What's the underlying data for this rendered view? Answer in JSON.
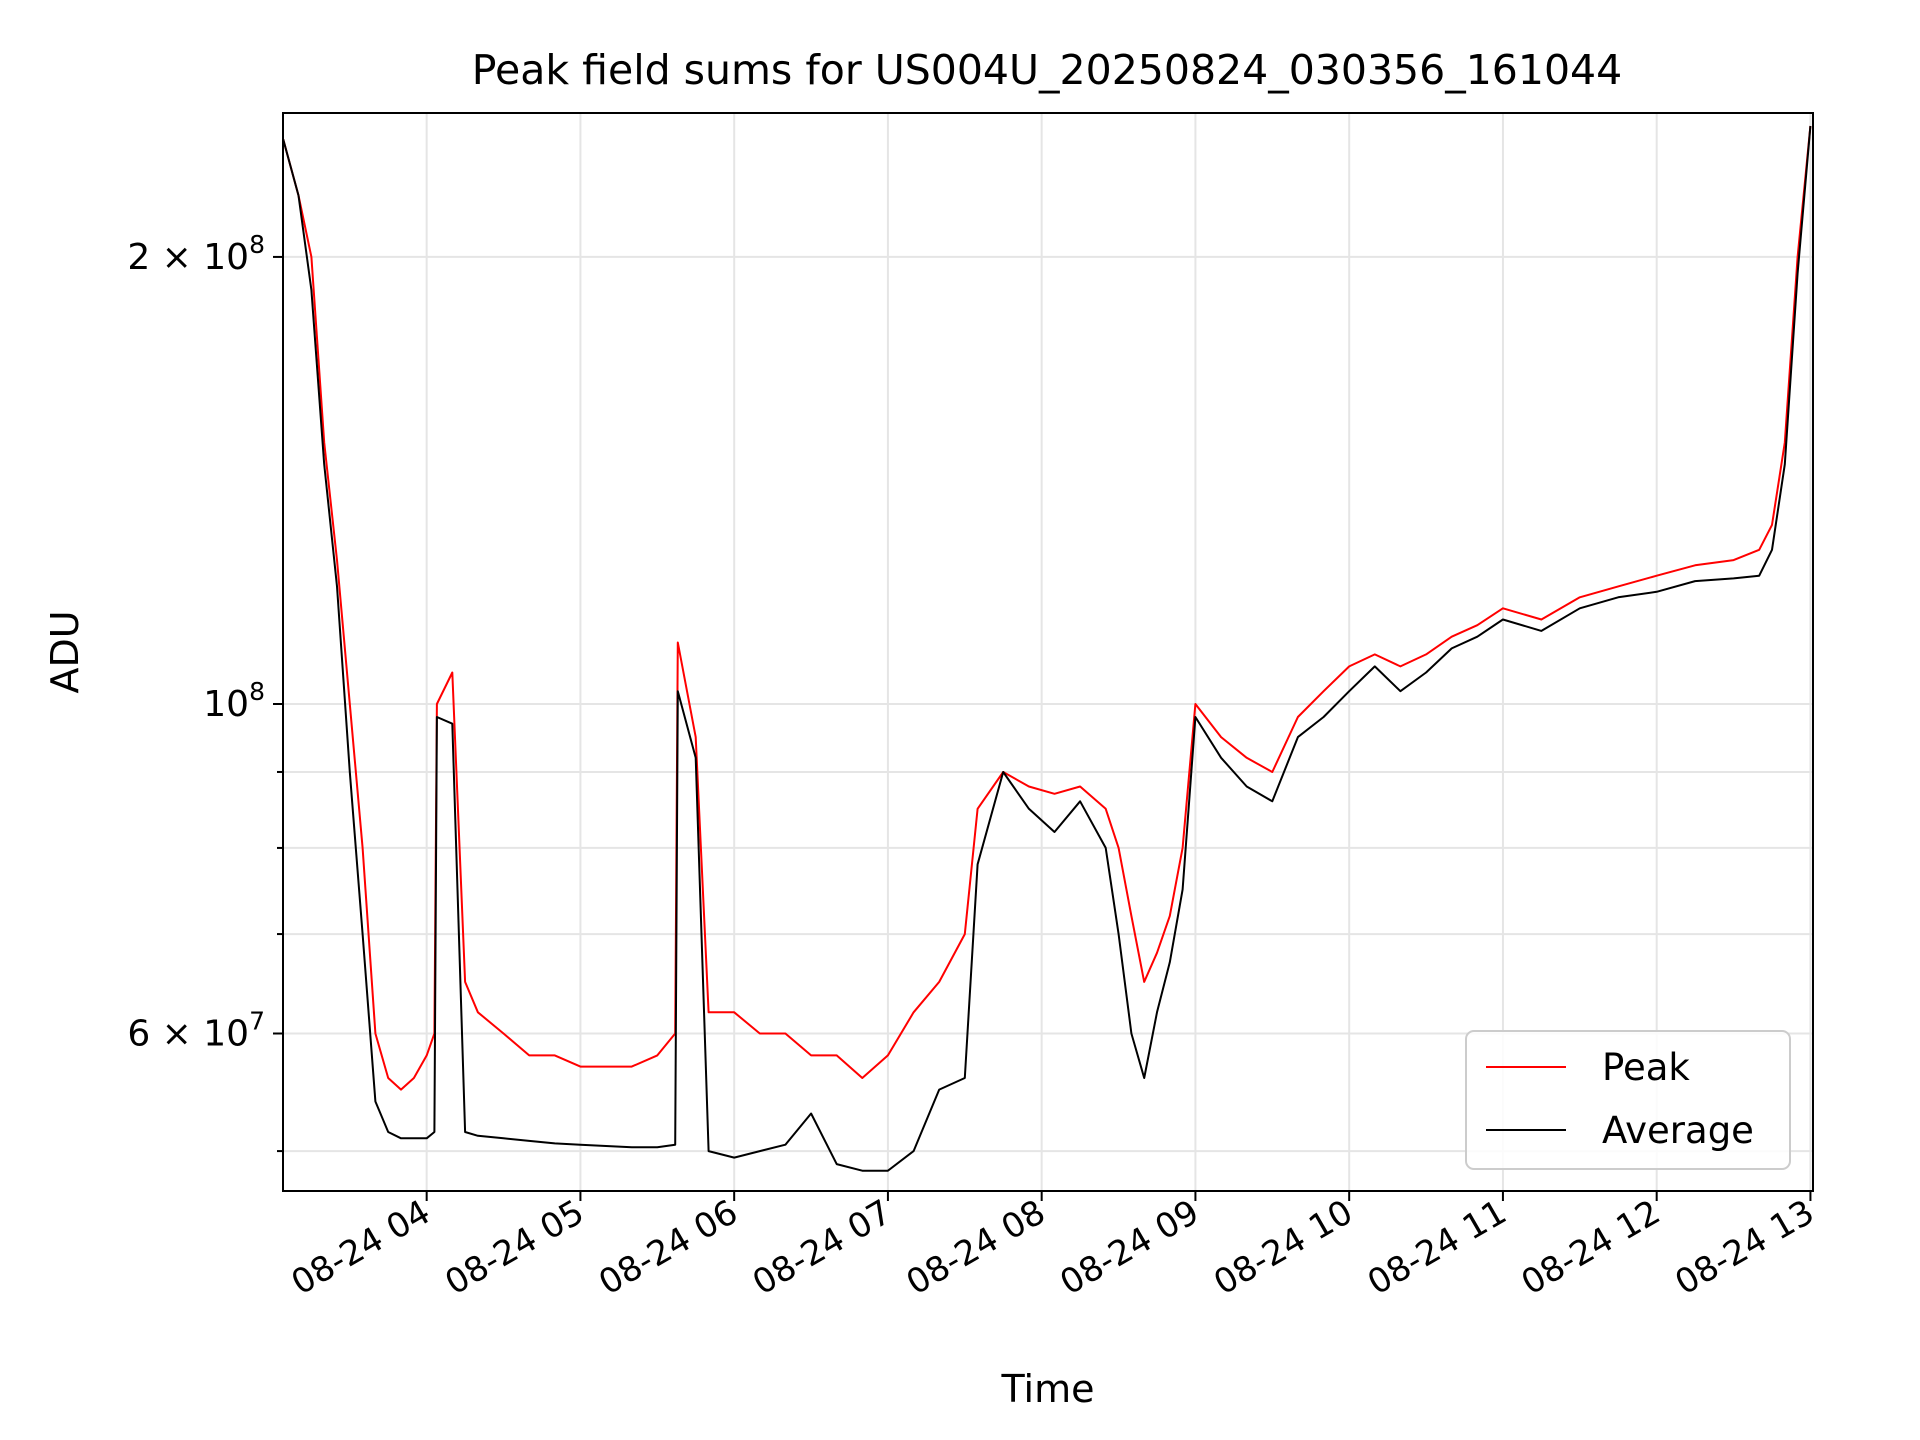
{
  "chart_data": {
    "type": "line",
    "title": "Peak field sums for US004U_20250824_030356_161044",
    "xlabel": "Time",
    "ylabel": "ADU",
    "yscale": "log",
    "grid": true,
    "legend_position": "lower-right",
    "xlim": [
      "2025-08-24T03:03:56",
      "2025-08-24T13:01:00"
    ],
    "ylim": [
      47000000,
      250000000
    ],
    "x_ticks": [
      {
        "value": "2025-08-24T04:00:00",
        "label": "08-24 04"
      },
      {
        "value": "2025-08-24T05:00:00",
        "label": "08-24 05"
      },
      {
        "value": "2025-08-24T06:00:00",
        "label": "08-24 06"
      },
      {
        "value": "2025-08-24T07:00:00",
        "label": "08-24 07"
      },
      {
        "value": "2025-08-24T08:00:00",
        "label": "08-24 08"
      },
      {
        "value": "2025-08-24T09:00:00",
        "label": "08-24 09"
      },
      {
        "value": "2025-08-24T10:00:00",
        "label": "08-24 10"
      },
      {
        "value": "2025-08-24T11:00:00",
        "label": "08-24 11"
      },
      {
        "value": "2025-08-24T12:00:00",
        "label": "08-24 12"
      },
      {
        "value": "2025-08-24T13:00:00",
        "label": "08-24 13"
      }
    ],
    "y_major_ticks": [
      {
        "value": 60000000,
        "mantissa": "6",
        "exponent": "7"
      },
      {
        "value": 100000000,
        "mantissa": "",
        "exponent": "8"
      },
      {
        "value": 200000000,
        "mantissa": "2",
        "exponent": "8"
      }
    ],
    "y_minor_ticks": [
      50000000,
      70000000,
      80000000,
      90000000
    ],
    "series": [
      {
        "name": "Peak",
        "color": "#ff0000",
        "x": [
          "2025-08-24T03:04:00",
          "2025-08-24T03:10:00",
          "2025-08-24T03:15:00",
          "2025-08-24T03:20:00",
          "2025-08-24T03:25:00",
          "2025-08-24T03:30:00",
          "2025-08-24T03:35:00",
          "2025-08-24T03:40:00",
          "2025-08-24T03:45:00",
          "2025-08-24T03:50:00",
          "2025-08-24T03:55:00",
          "2025-08-24T04:00:00",
          "2025-08-24T04:03:00",
          "2025-08-24T04:04:00",
          "2025-08-24T04:10:00",
          "2025-08-24T04:15:00",
          "2025-08-24T04:20:00",
          "2025-08-24T04:30:00",
          "2025-08-24T04:40:00",
          "2025-08-24T04:50:00",
          "2025-08-24T05:00:00",
          "2025-08-24T05:10:00",
          "2025-08-24T05:20:00",
          "2025-08-24T05:30:00",
          "2025-08-24T05:37:00",
          "2025-08-24T05:38:00",
          "2025-08-24T05:45:00",
          "2025-08-24T05:50:00",
          "2025-08-24T06:00:00",
          "2025-08-24T06:10:00",
          "2025-08-24T06:20:00",
          "2025-08-24T06:30:00",
          "2025-08-24T06:40:00",
          "2025-08-24T06:50:00",
          "2025-08-24T07:00:00",
          "2025-08-24T07:10:00",
          "2025-08-24T07:20:00",
          "2025-08-24T07:30:00",
          "2025-08-24T07:35:00",
          "2025-08-24T07:45:00",
          "2025-08-24T07:55:00",
          "2025-08-24T08:05:00",
          "2025-08-24T08:15:00",
          "2025-08-24T08:25:00",
          "2025-08-24T08:30:00",
          "2025-08-24T08:35:00",
          "2025-08-24T08:40:00",
          "2025-08-24T08:45:00",
          "2025-08-24T08:50:00",
          "2025-08-24T08:55:00",
          "2025-08-24T09:00:00",
          "2025-08-24T09:10:00",
          "2025-08-24T09:20:00",
          "2025-08-24T09:30:00",
          "2025-08-24T09:40:00",
          "2025-08-24T09:50:00",
          "2025-08-24T10:00:00",
          "2025-08-24T10:10:00",
          "2025-08-24T10:20:00",
          "2025-08-24T10:30:00",
          "2025-08-24T10:40:00",
          "2025-08-24T10:50:00",
          "2025-08-24T11:00:00",
          "2025-08-24T11:15:00",
          "2025-08-24T11:30:00",
          "2025-08-24T11:45:00",
          "2025-08-24T12:00:00",
          "2025-08-24T12:15:00",
          "2025-08-24T12:30:00",
          "2025-08-24T12:40:00",
          "2025-08-24T12:45:00",
          "2025-08-24T12:50:00",
          "2025-08-24T12:55:00",
          "2025-08-24T13:00:00"
        ],
        "y": [
          240000000,
          220000000,
          200000000,
          150000000,
          125000000,
          100000000,
          80000000,
          60000000,
          56000000,
          55000000,
          56000000,
          58000000,
          60000000,
          100000000,
          105000000,
          65000000,
          62000000,
          60000000,
          58000000,
          58000000,
          57000000,
          57000000,
          57000000,
          58000000,
          60000000,
          110000000,
          95000000,
          62000000,
          62000000,
          60000000,
          60000000,
          58000000,
          58000000,
          56000000,
          58000000,
          62000000,
          65000000,
          70000000,
          85000000,
          90000000,
          88000000,
          87000000,
          88000000,
          85000000,
          80000000,
          72000000,
          65000000,
          68000000,
          72000000,
          80000000,
          100000000,
          95000000,
          92000000,
          90000000,
          98000000,
          102000000,
          106000000,
          108000000,
          106000000,
          108000000,
          111000000,
          113000000,
          116000000,
          114000000,
          118000000,
          120000000,
          122000000,
          124000000,
          125000000,
          127000000,
          132000000,
          150000000,
          200000000,
          245000000
        ]
      },
      {
        "name": "Average",
        "color": "#000000",
        "x": [
          "2025-08-24T03:04:00",
          "2025-08-24T03:10:00",
          "2025-08-24T03:15:00",
          "2025-08-24T03:20:00",
          "2025-08-24T03:25:00",
          "2025-08-24T03:30:00",
          "2025-08-24T03:35:00",
          "2025-08-24T03:40:00",
          "2025-08-24T03:45:00",
          "2025-08-24T03:50:00",
          "2025-08-24T03:55:00",
          "2025-08-24T04:00:00",
          "2025-08-24T04:03:00",
          "2025-08-24T04:04:00",
          "2025-08-24T04:10:00",
          "2025-08-24T04:15:00",
          "2025-08-24T04:20:00",
          "2025-08-24T04:30:00",
          "2025-08-24T04:40:00",
          "2025-08-24T04:50:00",
          "2025-08-24T05:00:00",
          "2025-08-24T05:10:00",
          "2025-08-24T05:20:00",
          "2025-08-24T05:30:00",
          "2025-08-24T05:37:00",
          "2025-08-24T05:38:00",
          "2025-08-24T05:45:00",
          "2025-08-24T05:50:00",
          "2025-08-24T06:00:00",
          "2025-08-24T06:10:00",
          "2025-08-24T06:20:00",
          "2025-08-24T06:30:00",
          "2025-08-24T06:40:00",
          "2025-08-24T06:50:00",
          "2025-08-24T07:00:00",
          "2025-08-24T07:10:00",
          "2025-08-24T07:20:00",
          "2025-08-24T07:30:00",
          "2025-08-24T07:35:00",
          "2025-08-24T07:45:00",
          "2025-08-24T07:55:00",
          "2025-08-24T08:05:00",
          "2025-08-24T08:15:00",
          "2025-08-24T08:25:00",
          "2025-08-24T08:30:00",
          "2025-08-24T08:35:00",
          "2025-08-24T08:40:00",
          "2025-08-24T08:45:00",
          "2025-08-24T08:50:00",
          "2025-08-24T08:55:00",
          "2025-08-24T09:00:00",
          "2025-08-24T09:10:00",
          "2025-08-24T09:20:00",
          "2025-08-24T09:30:00",
          "2025-08-24T09:40:00",
          "2025-08-24T09:50:00",
          "2025-08-24T10:00:00",
          "2025-08-24T10:10:00",
          "2025-08-24T10:20:00",
          "2025-08-24T10:30:00",
          "2025-08-24T10:40:00",
          "2025-08-24T10:50:00",
          "2025-08-24T11:00:00",
          "2025-08-24T11:15:00",
          "2025-08-24T11:30:00",
          "2025-08-24T11:45:00",
          "2025-08-24T12:00:00",
          "2025-08-24T12:15:00",
          "2025-08-24T12:30:00",
          "2025-08-24T12:40:00",
          "2025-08-24T12:45:00",
          "2025-08-24T12:50:00",
          "2025-08-24T12:55:00",
          "2025-08-24T13:00:00"
        ],
        "y": [
          240000000,
          220000000,
          190000000,
          145000000,
          120000000,
          90000000,
          70000000,
          54000000,
          51500000,
          51000000,
          51000000,
          51000000,
          51500000,
          98000000,
          97000000,
          51500000,
          51200000,
          51000000,
          50800000,
          50600000,
          50500000,
          50400000,
          50300000,
          50300000,
          50500000,
          102000000,
          92000000,
          50000000,
          49500000,
          50000000,
          50500000,
          53000000,
          49000000,
          48500000,
          48500000,
          50000000,
          55000000,
          56000000,
          78000000,
          90000000,
          85000000,
          82000000,
          86000000,
          80000000,
          70000000,
          60000000,
          56000000,
          62000000,
          67000000,
          75000000,
          98000000,
          92000000,
          88000000,
          86000000,
          95000000,
          98000000,
          102000000,
          106000000,
          102000000,
          105000000,
          109000000,
          111000000,
          114000000,
          112000000,
          116000000,
          118000000,
          119000000,
          121000000,
          121500000,
          122000000,
          127000000,
          145000000,
          195000000,
          245000000
        ]
      }
    ]
  }
}
